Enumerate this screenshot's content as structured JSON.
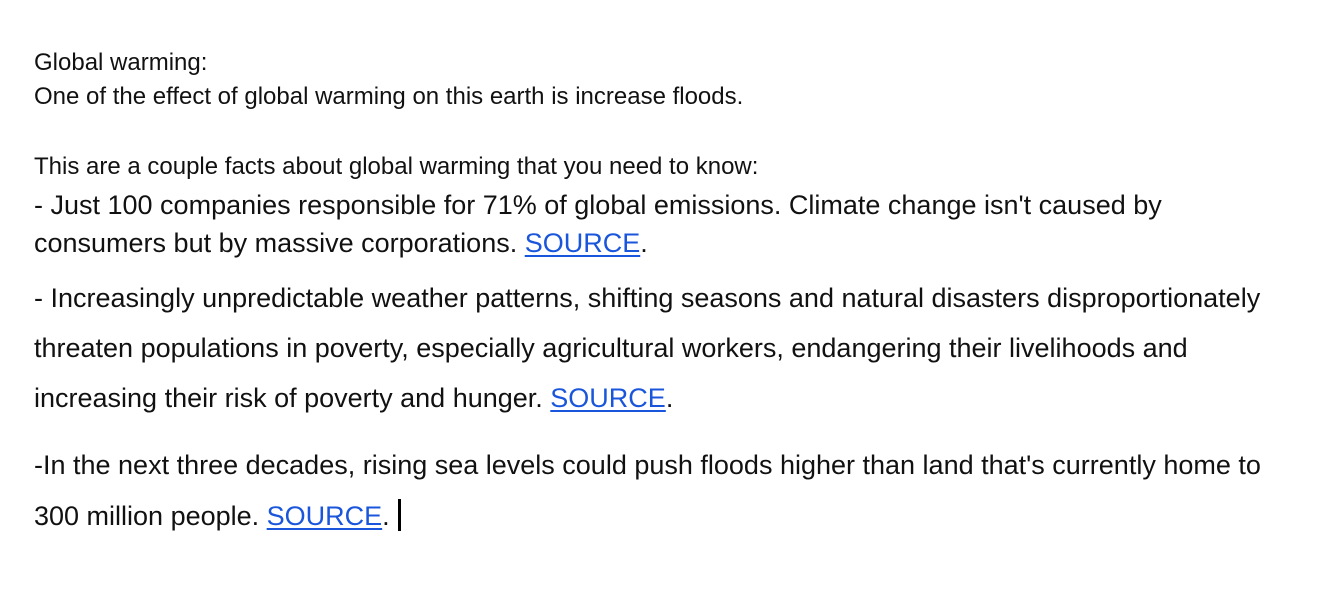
{
  "document": {
    "heading": "Global warming:",
    "intro": "One of the effect of global warming on this earth is increase floods.",
    "lead": "This are a couple facts about global warming that you need to know:",
    "facts": [
      {
        "text": "- Just 100 companies responsible for 71% of global emissions. Climate change isn't caused by consumers but by massive corporations. ",
        "link": "SOURCE",
        "after": "."
      },
      {
        "text": "- Increasingly unpredictable weather patterns, shifting seasons and natural disasters disproportionately threaten populations in poverty, especially agricultural workers, endangering their livelihoods and increasing their risk of poverty and hunger. ",
        "link": "SOURCE",
        "after": "."
      },
      {
        "text": "-In the next three decades, rising sea levels could push floods higher than land that's currently home to 300 million people. ",
        "link": "SOURCE",
        "after": "."
      }
    ]
  }
}
